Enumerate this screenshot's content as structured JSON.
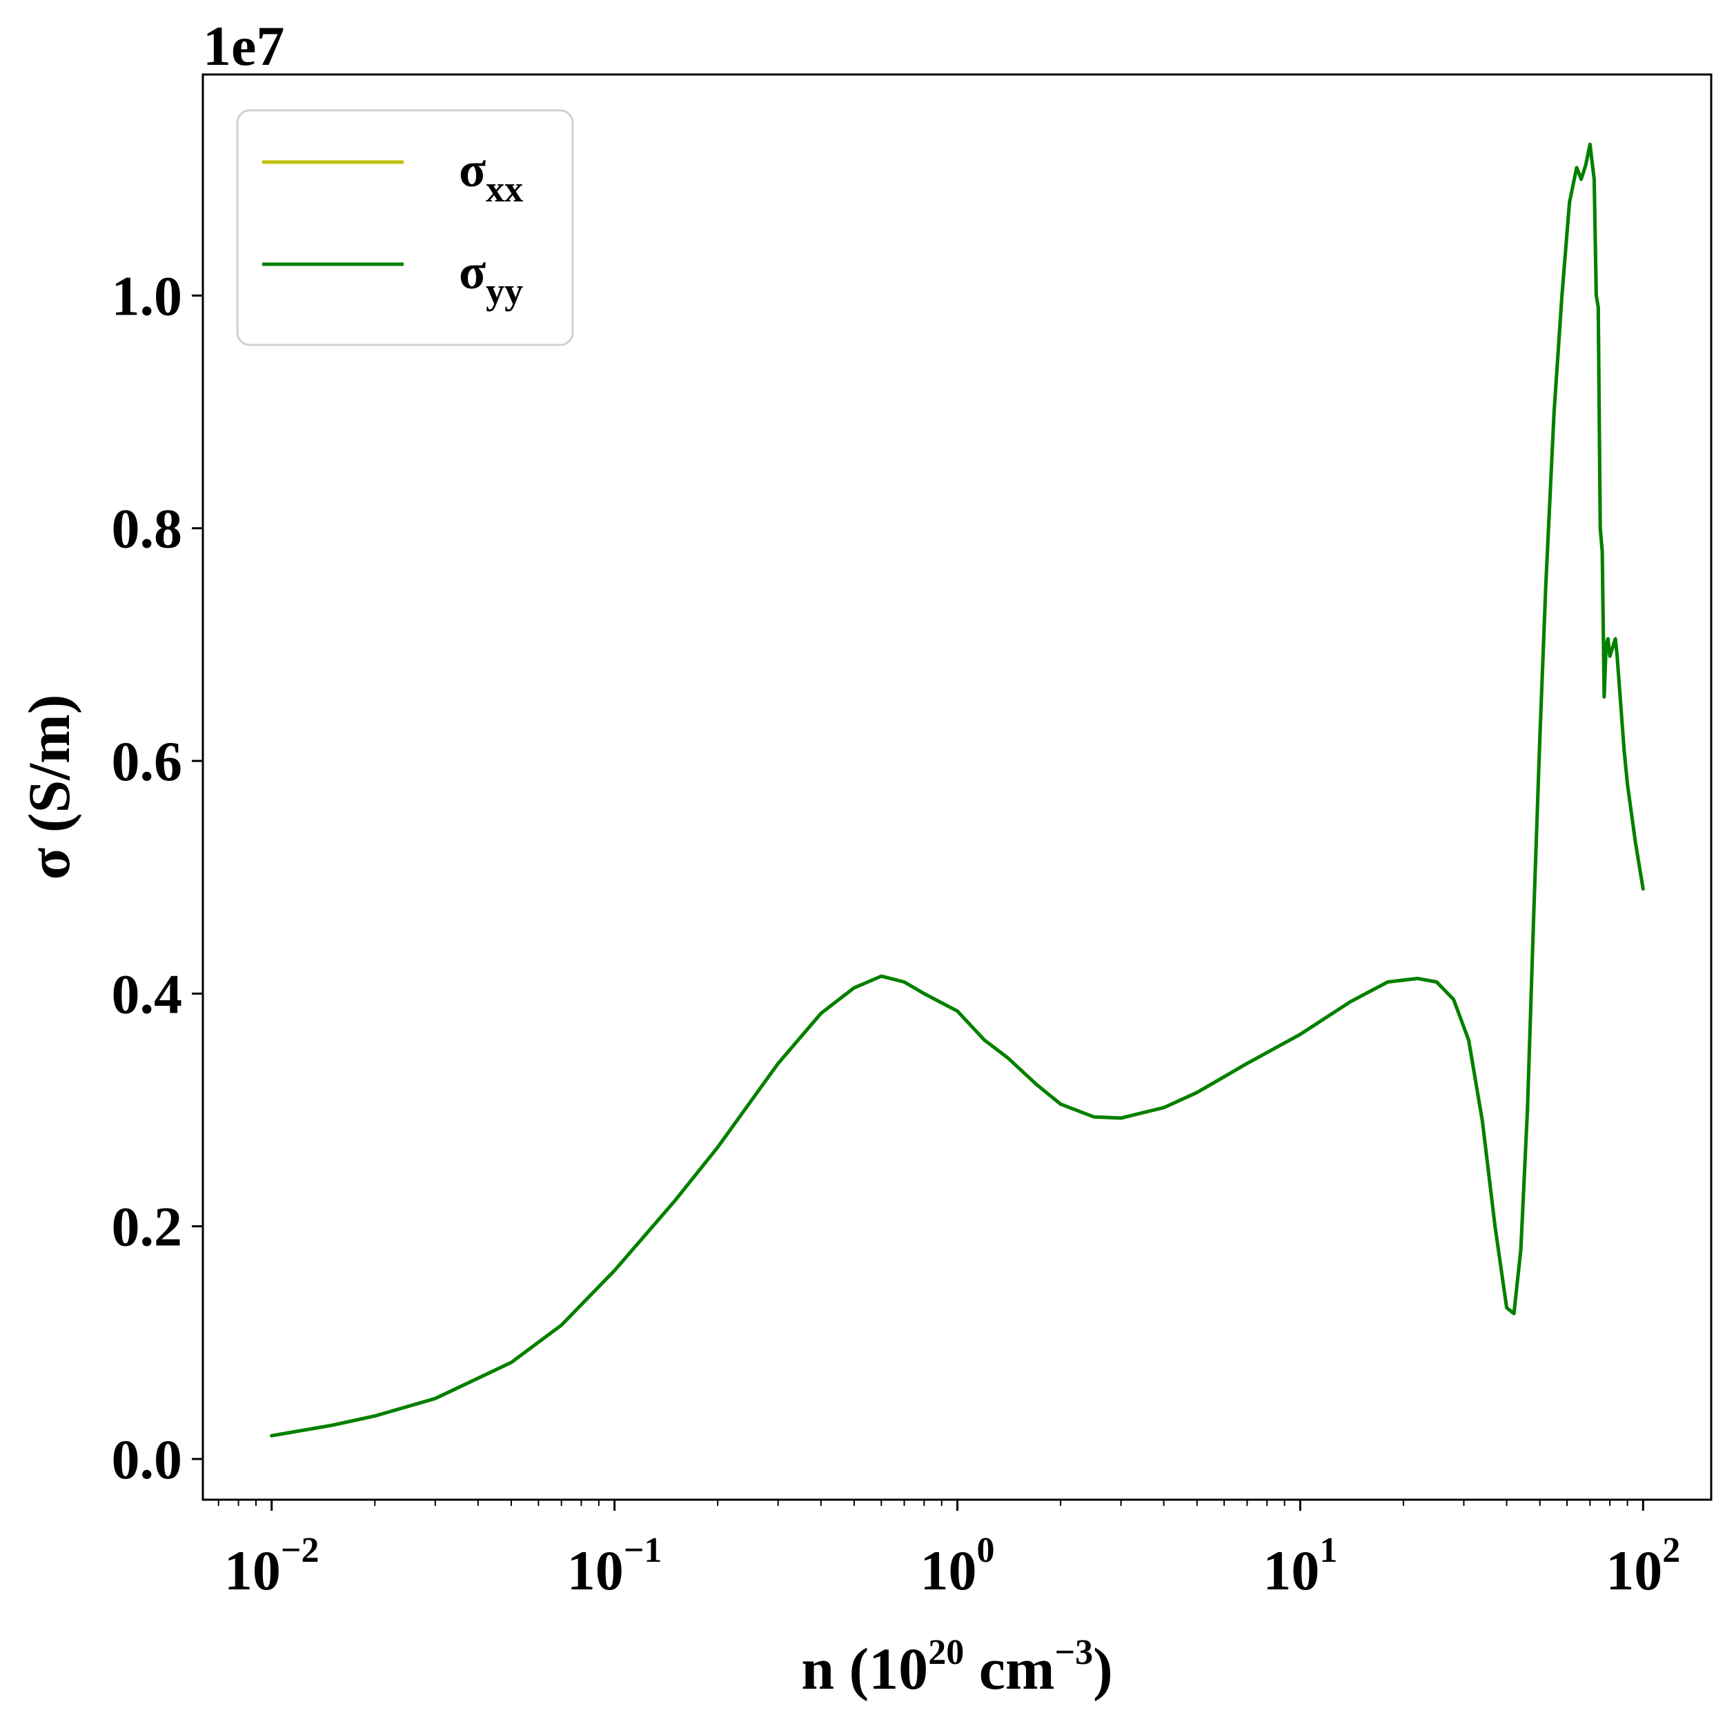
{
  "chart_data": {
    "type": "line",
    "title": "",
    "xlabel": {
      "main": "n (10",
      "sup1": "20",
      "mid": " cm",
      "sup2": "−3",
      "end": ")"
    },
    "ylabel": "σ (S/m)",
    "y_offset_label": "1e7",
    "x_scale": "log",
    "xlim": [
      0.0063,
      158
    ],
    "ylim": [
      -0.035,
      1.19
    ],
    "y_units_multiplier": 10000000,
    "grid": false,
    "legend_position": "top-left",
    "x_ticks": [
      {
        "value": 0.01,
        "base": "10",
        "exp": "−2"
      },
      {
        "value": 0.1,
        "base": "10",
        "exp": "−1"
      },
      {
        "value": 1,
        "base": "10",
        "exp": "0"
      },
      {
        "value": 10,
        "base": "10",
        "exp": "1"
      },
      {
        "value": 100,
        "base": "10",
        "exp": "2"
      }
    ],
    "y_ticks": [
      {
        "value": 0.0,
        "label": "0.0"
      },
      {
        "value": 0.2,
        "label": "0.2"
      },
      {
        "value": 0.4,
        "label": "0.4"
      },
      {
        "value": 0.6,
        "label": "0.6"
      },
      {
        "value": 0.8,
        "label": "0.8"
      },
      {
        "value": 1.0,
        "label": "1.0"
      }
    ],
    "series": [
      {
        "name": "σ",
        "subscript": "xx",
        "color": "#bfbf00",
        "x": [
          0.01,
          0.015,
          0.02,
          0.03,
          0.05,
          0.07,
          0.1,
          0.15,
          0.2,
          0.3,
          0.4,
          0.5,
          0.6,
          0.7,
          0.8,
          1.0,
          1.2,
          1.4,
          1.7,
          2.0,
          2.5,
          3.0,
          4.0,
          5.0,
          7.0,
          10.0,
          14.0,
          18.0,
          22.0,
          25.0,
          28.0,
          31.0,
          34.0,
          37.0,
          40.0,
          42.0,
          44.0,
          46.0,
          48.0,
          50.0,
          52.0,
          55.0,
          58.0,
          61.0,
          64.0,
          66.0,
          68.0,
          70.0,
          72.0,
          73.0,
          74.0,
          75.0,
          76.0,
          77.0,
          78.0,
          79.0,
          80.0,
          81.0,
          82.0,
          83.0,
          84.0,
          85.0,
          86.0,
          87.0,
          88.0,
          90.0,
          95.0,
          100.0
        ],
        "y": [
          0.02,
          0.029,
          0.037,
          0.052,
          0.083,
          0.115,
          0.162,
          0.222,
          0.268,
          0.34,
          0.383,
          0.405,
          0.415,
          0.41,
          0.4,
          0.385,
          0.36,
          0.345,
          0.322,
          0.305,
          0.294,
          0.293,
          0.302,
          0.315,
          0.34,
          0.365,
          0.393,
          0.41,
          0.413,
          0.41,
          0.395,
          0.36,
          0.29,
          0.2,
          0.13,
          0.125,
          0.18,
          0.3,
          0.47,
          0.62,
          0.75,
          0.9,
          1.0,
          1.08,
          1.11,
          1.1,
          1.112,
          1.13,
          1.1,
          1.0,
          0.99,
          0.8,
          0.78,
          0.655,
          0.7,
          0.705,
          0.69,
          0.695,
          0.7,
          0.705,
          0.69,
          0.67,
          0.65,
          0.63,
          0.61,
          0.58,
          0.53,
          0.49
        ]
      },
      {
        "name": "σ",
        "subscript": "yy",
        "color": "#008000",
        "x": [
          0.01,
          0.015,
          0.02,
          0.03,
          0.05,
          0.07,
          0.1,
          0.15,
          0.2,
          0.3,
          0.4,
          0.5,
          0.6,
          0.7,
          0.8,
          1.0,
          1.2,
          1.4,
          1.7,
          2.0,
          2.5,
          3.0,
          4.0,
          5.0,
          7.0,
          10.0,
          14.0,
          18.0,
          22.0,
          25.0,
          28.0,
          31.0,
          34.0,
          37.0,
          40.0,
          42.0,
          44.0,
          46.0,
          48.0,
          50.0,
          52.0,
          55.0,
          58.0,
          61.0,
          64.0,
          66.0,
          68.0,
          70.0,
          72.0,
          73.0,
          74.0,
          75.0,
          76.0,
          77.0,
          78.0,
          79.0,
          80.0,
          81.0,
          82.0,
          83.0,
          84.0,
          85.0,
          86.0,
          87.0,
          88.0,
          90.0,
          95.0,
          100.0
        ],
        "y": [
          0.02,
          0.029,
          0.037,
          0.052,
          0.083,
          0.115,
          0.162,
          0.222,
          0.268,
          0.34,
          0.383,
          0.405,
          0.415,
          0.41,
          0.4,
          0.385,
          0.36,
          0.345,
          0.322,
          0.305,
          0.294,
          0.293,
          0.302,
          0.315,
          0.34,
          0.365,
          0.393,
          0.41,
          0.413,
          0.41,
          0.395,
          0.36,
          0.29,
          0.2,
          0.13,
          0.125,
          0.18,
          0.3,
          0.47,
          0.62,
          0.75,
          0.9,
          1.0,
          1.08,
          1.11,
          1.1,
          1.112,
          1.13,
          1.1,
          1.0,
          0.99,
          0.8,
          0.78,
          0.655,
          0.7,
          0.705,
          0.69,
          0.695,
          0.7,
          0.705,
          0.69,
          0.67,
          0.65,
          0.63,
          0.61,
          0.58,
          0.53,
          0.49
        ]
      }
    ]
  }
}
